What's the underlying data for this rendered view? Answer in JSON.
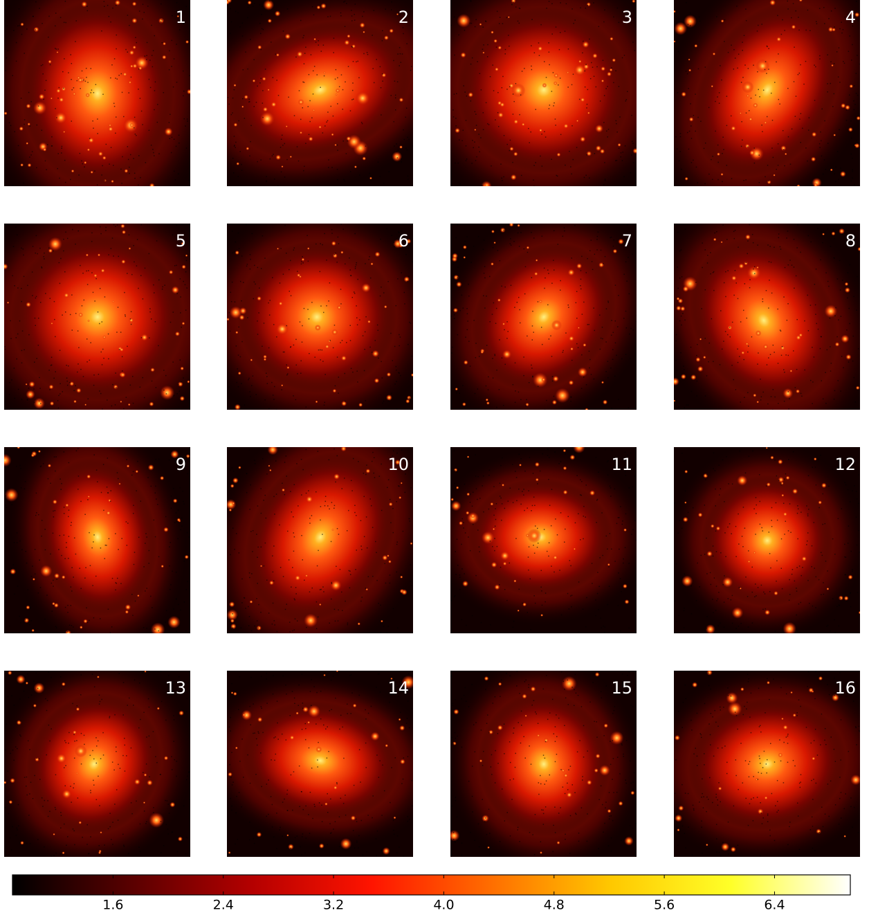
{
  "panels": [
    {
      "label": "1"
    },
    {
      "label": "2"
    },
    {
      "label": "3"
    },
    {
      "label": "4"
    },
    {
      "label": "5"
    },
    {
      "label": "6"
    },
    {
      "label": "7"
    },
    {
      "label": "8"
    },
    {
      "label": "9"
    },
    {
      "label": "10"
    },
    {
      "label": "11"
    },
    {
      "label": "12"
    },
    {
      "label": "13"
    },
    {
      "label": "14"
    },
    {
      "label": "15"
    },
    {
      "label": "16"
    }
  ],
  "colorbar": {
    "lim": [
      0.87,
      6.95
    ],
    "ticks": [
      1.6,
      2.4,
      3.2,
      {
        "value": 4,
        "label": "4.0"
      },
      4.8,
      5.6,
      6.4
    ],
    "colors": [
      "#000000",
      "#5a0000",
      "#b40000",
      "#ff1400",
      "#ff6e00",
      "#ffc800",
      "#ffff28",
      "#ffffff"
    ]
  }
}
